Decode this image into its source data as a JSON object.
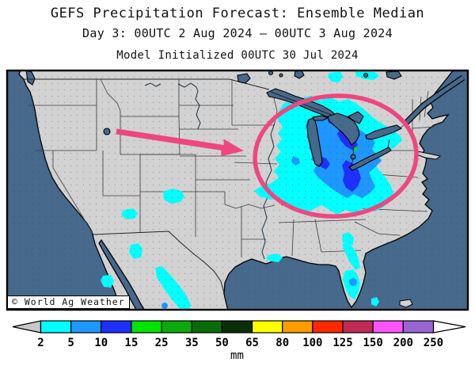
{
  "header": {
    "title": "GEFS Precipitation Forecast: Ensemble Median",
    "subtitle": "Day 3: 00UTC 2 Aug 2024 — 00UTC 3 Aug 2024",
    "init_line": "Model Initialized 00UTC 30 Jul 2024"
  },
  "map": {
    "watermark": "© World Ag Weather",
    "region": "Continental United States",
    "land_color": "#d2d2d2",
    "ocean_color": "#46698c",
    "annotation": {
      "color": "#ee4780",
      "ellipse_target": "Great Lakes / Ohio Valley precipitation area",
      "arrow_direction": "pointing east toward the highlighted area"
    }
  },
  "colorbar": {
    "unit": "mm",
    "tick_values": [
      2,
      5,
      10,
      15,
      25,
      35,
      50,
      65,
      80,
      100,
      125,
      150,
      200,
      250
    ],
    "segment_colors": [
      "#00ffff",
      "#1e97ff",
      "#1f2fff",
      "#00e400",
      "#0caa0c",
      "#0b6b0b",
      "#0a2e0a",
      "#ffff00",
      "#ff9c00",
      "#ff2800",
      "#be2b55",
      "#fa55fa",
      "#9a64d2"
    ],
    "below_min_color": "#c8c8c8",
    "above_max_color": "#ffffff"
  }
}
